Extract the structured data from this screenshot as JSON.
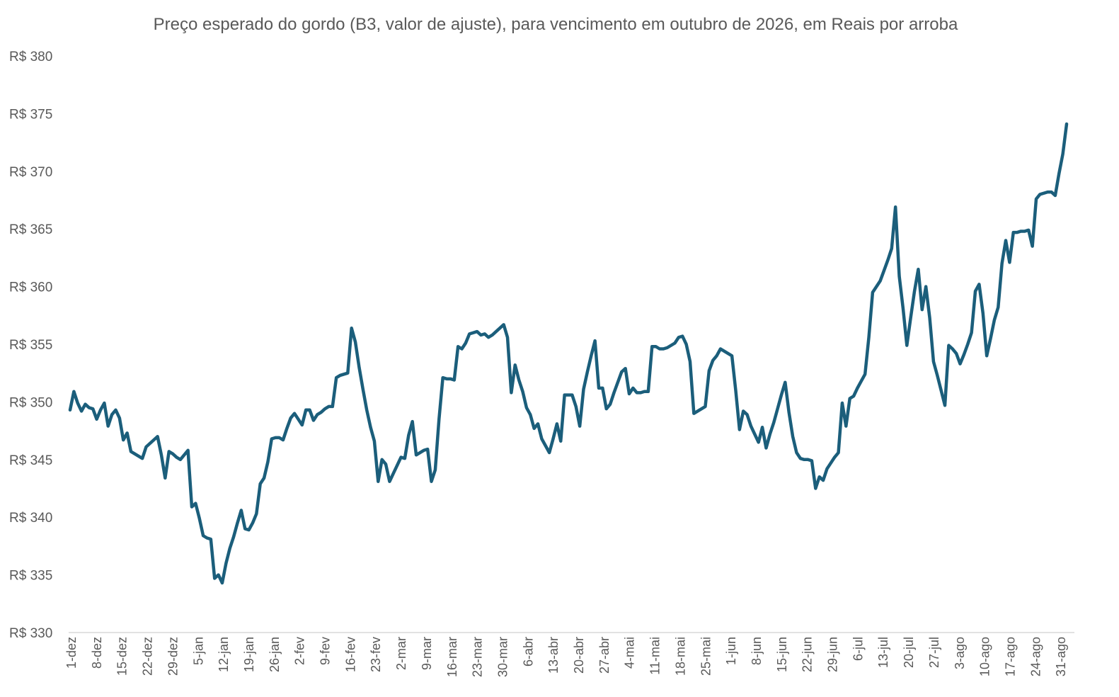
{
  "chart_data": {
    "type": "line",
    "title": "Preço esperado do gordo (B3, valor de ajuste), para vencimento em outubro de 2026, em Reais por arroba",
    "xlabel": "",
    "ylabel": "",
    "ylim": [
      330,
      380
    ],
    "ytick_values": [
      330,
      335,
      340,
      345,
      350,
      355,
      360,
      365,
      370,
      375,
      380
    ],
    "ytick_labels": [
      "R$ 330",
      "R$ 335",
      "R$ 340",
      "R$ 345",
      "R$ 350",
      "R$ 355",
      "R$ 360",
      "R$ 365",
      "R$ 370",
      "R$ 375",
      "R$ 380"
    ],
    "xtick_labels": [
      "1-dez",
      "8-dez",
      "15-dez",
      "22-dez",
      "29-dez",
      "5-jan",
      "12-jan",
      "19-jan",
      "26-jan",
      "2-fev",
      "9-fev",
      "16-fev",
      "23-fev",
      "2-mar",
      "9-mar",
      "16-mar",
      "23-mar",
      "30-mar",
      "6-abr",
      "13-abr",
      "20-abr",
      "27-abr",
      "4-mai",
      "11-mai",
      "18-mai",
      "25-mai",
      "1-jun",
      "8-jun",
      "15-jun",
      "22-jun",
      "29-jun",
      "6-jul",
      "13-jul",
      "20-jul",
      "27-jul",
      "3-ago",
      "10-ago",
      "17-ago",
      "24-ago",
      "31-ago"
    ],
    "grid": false,
    "legend": "none",
    "series": [
      {
        "color": "#1b5e7b",
        "values": [
          349.3,
          350.9,
          349.9,
          349.2,
          349.8,
          349.5,
          349.4,
          348.5,
          349.3,
          349.9,
          347.9,
          348.9,
          349.3,
          348.6,
          346.7,
          347.3,
          345.7,
          345.5,
          345.3,
          345.1,
          346.1,
          346.4,
          346.7,
          347.0,
          345.4,
          343.4,
          345.7,
          345.5,
          345.2,
          345.0,
          345.4,
          345.8,
          340.9,
          341.2,
          339.9,
          338.4,
          338.2,
          338.1,
          334.7,
          335.0,
          334.3,
          336.0,
          337.3,
          338.3,
          339.5,
          340.6,
          339.0,
          338.9,
          339.5,
          340.3,
          342.9,
          343.4,
          344.8,
          346.8,
          346.9,
          346.9,
          346.7,
          347.7,
          348.6,
          349.0,
          348.5,
          348.0,
          349.3,
          349.3,
          348.4,
          348.9,
          349.1,
          349.4,
          349.6,
          349.6,
          352.1,
          352.3,
          352.4,
          352.5,
          356.4,
          355.2,
          353.0,
          351.1,
          349.3,
          347.8,
          346.6,
          343.1,
          345.0,
          344.6,
          343.1,
          343.8,
          344.5,
          345.2,
          345.1,
          347.1,
          348.3,
          345.4,
          345.6,
          345.8,
          345.9,
          343.1,
          344.1,
          348.5,
          352.1,
          352.0,
          352.0,
          351.9,
          354.8,
          354.6,
          355.1,
          355.9,
          356.0,
          356.1,
          355.8,
          355.9,
          355.6,
          355.8,
          356.1,
          356.4,
          356.7,
          355.6,
          350.8,
          353.2,
          351.9,
          350.9,
          349.5,
          348.9,
          347.7,
          348.1,
          346.8,
          346.2,
          345.6,
          346.8,
          348.1,
          346.6,
          350.6,
          350.6,
          350.6,
          349.6,
          347.9,
          351.1,
          352.6,
          354.0,
          355.3,
          351.2,
          351.2,
          349.4,
          349.8,
          350.8,
          351.7,
          352.6,
          352.9,
          350.7,
          351.2,
          350.8,
          350.8,
          350.9,
          350.9,
          354.8,
          354.8,
          354.6,
          354.6,
          354.7,
          354.9,
          355.1,
          355.6,
          355.7,
          355.0,
          353.5,
          349.0,
          349.2,
          349.4,
          349.6,
          352.7,
          353.6,
          354.0,
          354.6,
          354.4,
          354.2,
          354.0,
          351.0,
          347.6,
          349.2,
          348.9,
          347.9,
          347.2,
          346.5,
          347.8,
          346.0,
          347.2,
          348.2,
          349.4,
          350.6,
          351.7,
          349.1,
          347.0,
          345.6,
          345.1,
          345.0,
          345.0,
          344.9,
          342.5,
          343.5,
          343.2,
          344.2,
          344.7,
          345.2,
          345.6,
          349.9,
          347.9,
          350.3,
          350.5,
          351.2,
          351.8,
          352.4,
          355.6,
          359.5,
          360.0,
          360.5,
          361.4,
          362.3,
          363.3,
          366.9,
          360.9,
          358.1,
          354.9,
          357.3,
          359.6,
          361.5,
          358.0,
          360.0,
          357.3,
          353.5,
          352.3,
          351.0,
          349.7,
          354.9,
          354.6,
          354.2,
          353.3,
          354.1,
          355.0,
          356.0,
          359.6,
          360.2,
          357.7,
          354.0,
          355.5,
          357.1,
          358.2,
          362.0,
          364.0,
          362.1,
          364.7,
          364.7,
          364.8,
          364.8,
          364.9,
          363.5,
          367.6,
          368.0,
          368.1,
          368.2,
          368.2,
          367.9,
          369.8,
          371.5,
          374.1
        ]
      }
    ]
  }
}
